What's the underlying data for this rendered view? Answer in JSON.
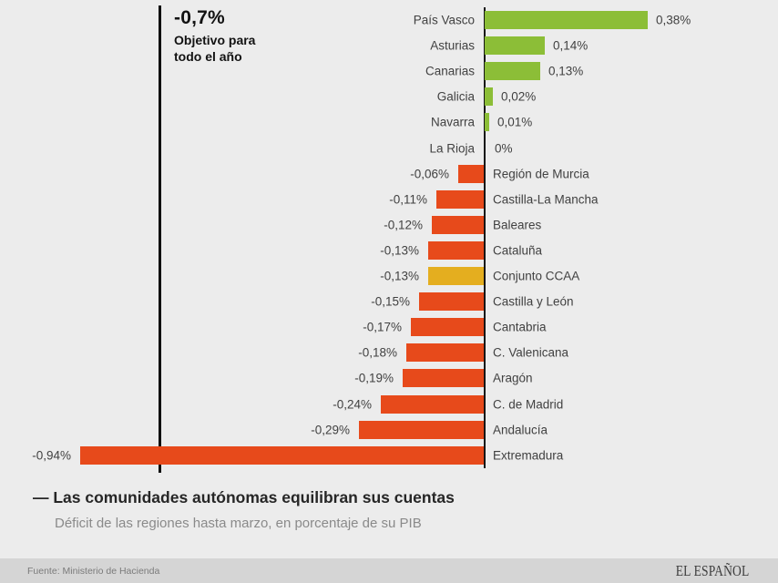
{
  "header": {
    "title": "— Las comunidades autónomas equilibran sus cuentas",
    "subtitle": "Déficit de las regiones hasta marzo, en porcentaje de su PIB"
  },
  "footer": {
    "source": "Fuente: Ministerio de Hacienda",
    "brand": "EL ESPAÑOL"
  },
  "colors": {
    "background": "#ECECEC",
    "footer_background": "#D5D5D5",
    "positive": "#8CBE37",
    "negative": "#E74A1B",
    "highlight": "#E4AE1F",
    "axis": "#151515",
    "label_text": "#414141"
  },
  "chart_data": {
    "type": "bar",
    "orientation": "horizontal",
    "title": "Las comunidades autónomas equilibran sus cuentas",
    "subtitle": "Déficit de las regiones hasta marzo, en porcentaje de su PIB",
    "xlabel": "",
    "ylabel": "",
    "xlim": [
      -1.0,
      0.45
    ],
    "grid": false,
    "legend": false,
    "categories": [
      "País Vasco",
      "Asturias",
      "Canarias",
      "Galicia",
      "Navarra",
      "La Rioja",
      "Región de Murcia",
      "Castilla-La Mancha",
      "Baleares",
      "Cataluña",
      "Conjunto CCAA",
      "Castilla y León",
      "Cantabria",
      "C. Valenicana",
      "Aragón",
      "C. de Madrid",
      "Andalucía",
      "Extremadura"
    ],
    "values": [
      0.38,
      0.14,
      0.13,
      0.02,
      0.01,
      0,
      -0.06,
      -0.11,
      -0.12,
      -0.13,
      -0.13,
      -0.15,
      -0.17,
      -0.18,
      -0.19,
      -0.24,
      -0.29,
      -0.94
    ],
    "value_labels": [
      "0,38%",
      "0,14%",
      "0,13%",
      "0,02%",
      "0,01%",
      "0%",
      "-0,06%",
      "-0,11%",
      "-0,12%",
      "-0,13%",
      "-0,13%",
      "-0,15%",
      "-0,17%",
      "-0,18%",
      "-0,19%",
      "-0,24%",
      "-0,29%",
      "-0,94%"
    ],
    "bar_colors": [
      "positive",
      "positive",
      "positive",
      "positive",
      "positive",
      "zero",
      "negative",
      "negative",
      "negative",
      "negative",
      "highlight",
      "negative",
      "negative",
      "negative",
      "negative",
      "negative",
      "negative",
      "negative"
    ],
    "target_line": {
      "value": -0.7,
      "label": "-0,7%",
      "sublabel": "Objetivo para todo el año"
    }
  }
}
